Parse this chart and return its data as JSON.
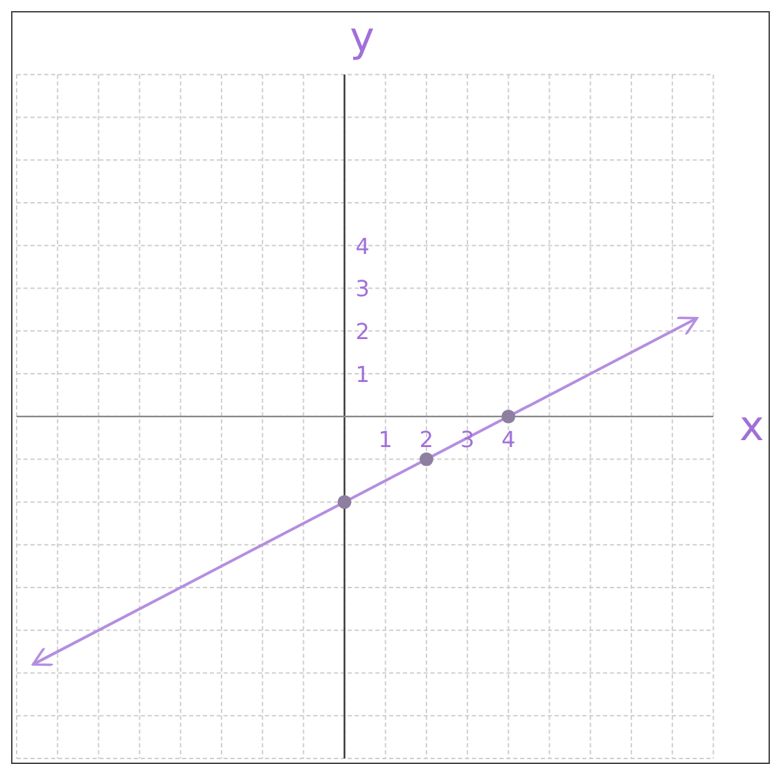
{
  "chart_data": {
    "type": "line",
    "xlabel": "x",
    "ylabel": "y",
    "xlim": [
      -8,
      9
    ],
    "ylim": [
      -8,
      8
    ],
    "xticks": [
      {
        "value": -8,
        "label": null
      },
      {
        "value": -7,
        "label": null
      },
      {
        "value": -6,
        "label": null
      },
      {
        "value": -5,
        "label": null
      },
      {
        "value": -4,
        "label": null
      },
      {
        "value": -3,
        "label": null
      },
      {
        "value": -2,
        "label": null
      },
      {
        "value": -1,
        "label": null
      },
      {
        "value": 0,
        "label": null
      },
      1,
      2,
      3,
      4,
      {
        "value": 5,
        "label": null
      },
      {
        "value": 6,
        "label": null
      },
      {
        "value": 7,
        "label": null
      },
      {
        "value": 8,
        "label": null
      }
    ],
    "yticks": [
      {
        "value": -8,
        "label": null
      },
      {
        "value": -7,
        "label": null
      },
      {
        "value": -6,
        "label": null
      },
      {
        "value": -5,
        "label": null
      },
      {
        "value": -4,
        "label": null
      },
      {
        "value": -3,
        "label": null
      },
      {
        "value": -2,
        "label": null
      },
      {
        "value": -1,
        "label": null
      },
      {
        "value": 0,
        "label": null
      },
      1,
      2,
      3,
      4,
      {
        "value": 5,
        "label": null
      },
      {
        "value": 6,
        "label": null
      },
      {
        "value": 7,
        "label": null
      },
      {
        "value": 8,
        "label": null
      }
    ],
    "grid": true,
    "series": [
      {
        "color": "#b48ee0",
        "x": [
          -7.6,
          8.6
        ],
        "values": [
          -5.8,
          2.3
        ],
        "marker": "none"
      },
      {
        "type": "scatter",
        "color": "#8e7fa0",
        "x": [
          0,
          2,
          4
        ],
        "values": [
          -2,
          -1,
          0
        ],
        "marker": "circle"
      }
    ]
  }
}
